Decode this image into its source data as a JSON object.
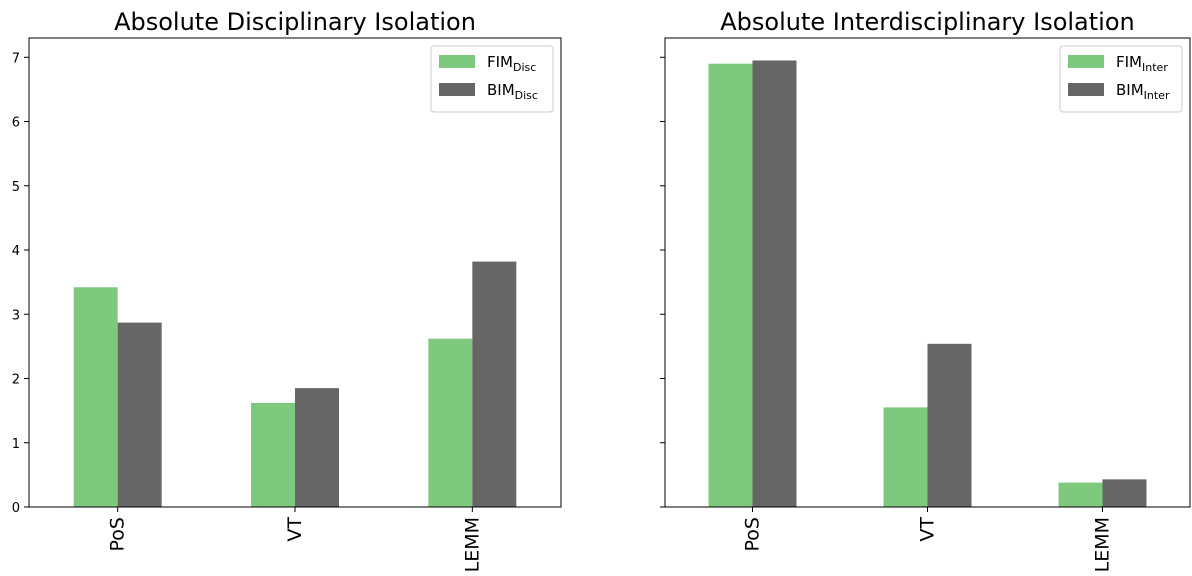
{
  "colors": {
    "fim": "#7fc97f",
    "bim": "#666666",
    "axis": "#000000",
    "legend_border": "#cccccc"
  },
  "chart_data": [
    {
      "type": "bar",
      "title": "Absolute Disciplinary Isolation",
      "categories": [
        "PoS",
        "VT",
        "LEMM"
      ],
      "series": [
        {
          "name": "FIM",
          "name_sub": "Disc",
          "values": [
            3.42,
            1.62,
            2.62
          ]
        },
        {
          "name": "BIM",
          "name_sub": "Disc",
          "values": [
            2.87,
            1.85,
            3.82
          ]
        }
      ],
      "ylim": [
        0,
        7.3
      ],
      "yticks": [
        0,
        1,
        2,
        3,
        4,
        5,
        6,
        7
      ],
      "show_ytick_labels": true,
      "xlabel": "",
      "ylabel": "",
      "grid": false,
      "legend": "top-right"
    },
    {
      "type": "bar",
      "title": "Absolute Interdisciplinary Isolation",
      "categories": [
        "PoS",
        "VT",
        "LEMM"
      ],
      "series": [
        {
          "name": "FIM",
          "name_sub": "Inter",
          "values": [
            6.9,
            1.55,
            0.38
          ]
        },
        {
          "name": "BIM",
          "name_sub": "Inter",
          "values": [
            6.95,
            2.54,
            0.43
          ]
        }
      ],
      "ylim": [
        0,
        7.3
      ],
      "yticks": [
        0,
        1,
        2,
        3,
        4,
        5,
        6,
        7
      ],
      "show_ytick_labels": false,
      "xlabel": "",
      "ylabel": "",
      "grid": false,
      "legend": "top-right"
    }
  ]
}
